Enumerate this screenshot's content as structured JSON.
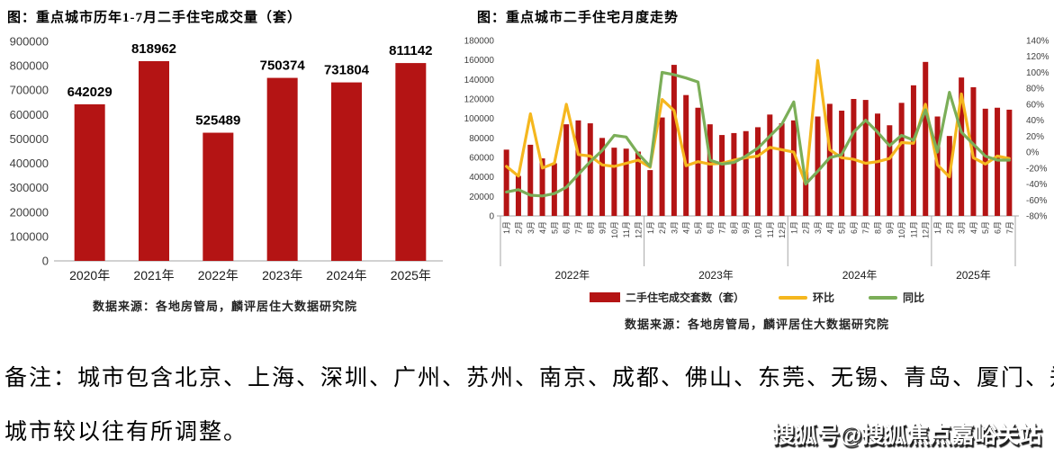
{
  "note": {
    "line1": "备注：城市包含北京、上海、深圳、广州、苏州、南京、成都、佛山、东莞、无锡、青岛、厦门、郑州，",
    "line2": "城市较以往有所调整。"
  },
  "watermark": "搜狐号@搜狐焦点嘉峪关站",
  "colors": {
    "bar_red": "#b41414",
    "line_yellow": "#f5b71e",
    "line_green": "#7bae58",
    "axis_text": "#3f3f3f",
    "axis_line": "#a6a6a6"
  },
  "chart_data": [
    {
      "type": "bar",
      "title": "图：重点城市历年1-7月二手住宅成交量（套）",
      "source": "数据来源：各地房管局，麟评居住大数据研究院",
      "categories": [
        "2020年",
        "2021年",
        "2022年",
        "2023年",
        "2024年",
        "2025年"
      ],
      "values": [
        642029,
        818962,
        525489,
        750374,
        731804,
        811142
      ],
      "ylim": [
        0,
        900000
      ],
      "ytick_step": 100000,
      "grid": false,
      "value_labels": true
    },
    {
      "type": "combo",
      "title": "图：重点城市二手住宅月度走势",
      "source": "数据来源：各地房管局，麟评居住大数据研究院",
      "year_groups": [
        {
          "label": "2022年",
          "n": 12
        },
        {
          "label": "2023年",
          "n": 12
        },
        {
          "label": "2024年",
          "n": 12
        },
        {
          "label": "2025年",
          "n": 7
        }
      ],
      "month_labels": [
        "1月",
        "2月",
        "3月",
        "4月",
        "5月",
        "6月",
        "7月",
        "8月",
        "9月",
        "10月",
        "11月",
        "12月",
        "1月",
        "2月",
        "3月",
        "4月",
        "5月",
        "6月",
        "7月",
        "8月",
        "9月",
        "10月",
        "11月",
        "12月",
        "1月",
        "2月",
        "3月",
        "4月",
        "5月",
        "6月",
        "7月",
        "8月",
        "9月",
        "10月",
        "11月",
        "12月",
        "1月",
        "2月",
        "3月",
        "4月",
        "5月",
        "6月",
        "7月"
      ],
      "left_axis": {
        "lim": [
          0,
          180000
        ],
        "step": 20000
      },
      "right_axis": {
        "lim": [
          -80,
          140
        ],
        "step": 20,
        "suffix": "%"
      },
      "grid": false,
      "legend_position": "bottom",
      "series": [
        {
          "name": "二手住宅成交套数（套）",
          "type": "bar",
          "axis": "left",
          "color": "#b41414",
          "values": [
            68000,
            41000,
            73000,
            59000,
            54000,
            94000,
            98000,
            95000,
            80000,
            70000,
            69000,
            66000,
            47000,
            101000,
            155000,
            124000,
            111000,
            94000,
            83000,
            85000,
            87000,
            91000,
            104000,
            95000,
            98000,
            45000,
            102000,
            115000,
            108000,
            120000,
            119000,
            105000,
            93000,
            116000,
            134000,
            158000,
            102000,
            82000,
            142000,
            132000,
            110000,
            111000,
            109000
          ]
        },
        {
          "name": "环比",
          "type": "line",
          "axis": "right",
          "color": "#f5b71e",
          "values": [
            -18,
            -30,
            48,
            -20,
            -14,
            60,
            -3,
            -5,
            -16,
            -18,
            -14,
            -10,
            -19,
            66,
            52,
            -17,
            -12,
            -15,
            -14,
            -10,
            -7,
            -5,
            6,
            3,
            0,
            -40,
            115,
            3,
            -7,
            -9,
            -14,
            -12,
            -8,
            12,
            11,
            60,
            -16,
            -31,
            73,
            -7,
            -15,
            -5,
            -8
          ]
        },
        {
          "name": "同比",
          "type": "line",
          "axis": "right",
          "color": "#7bae58",
          "values": [
            -50,
            -47,
            -54,
            -55,
            -52,
            -44,
            -28,
            -12,
            2,
            21,
            19,
            -2,
            -18,
            100,
            97,
            93,
            88,
            -10,
            -15,
            -13,
            -5,
            5,
            20,
            35,
            63,
            -40,
            -24,
            -7,
            -3,
            25,
            40,
            25,
            8,
            21,
            15,
            53,
            0,
            75,
            25,
            10,
            -5,
            -10,
            -10
          ]
        }
      ]
    }
  ]
}
